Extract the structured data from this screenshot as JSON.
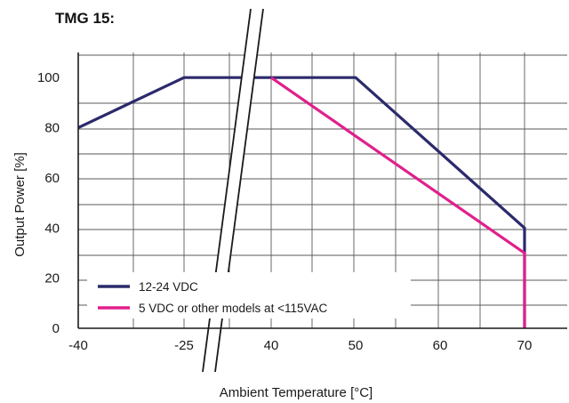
{
  "chart_data": {
    "type": "line",
    "title": "TMG 15:",
    "xlabel": "Ambient Temperature [°C]",
    "ylabel": "Output Power [%]",
    "x_tick_labels": [
      "-40",
      "-25",
      "40",
      "50",
      "60",
      "70"
    ],
    "y_ticks": [
      0,
      20,
      40,
      60,
      80,
      100
    ],
    "ylim": [
      0,
      110
    ],
    "axis_break": "between -25 and 40",
    "grid": true,
    "legend_position": "bottom-left",
    "series": [
      {
        "name": "12-24 VDC",
        "color": "#2b2a6b",
        "points": [
          {
            "x": -40,
            "y": 80
          },
          {
            "x": -25,
            "y": 100
          },
          {
            "x": 40,
            "y": 100
          },
          {
            "x": 50,
            "y": 100
          },
          {
            "x": 70,
            "y": 40
          },
          {
            "x": 70,
            "y": 0
          }
        ]
      },
      {
        "name": "5 VDC or other models at <115VAC",
        "color": "#e0208c",
        "points": [
          {
            "x": 40,
            "y": 100
          },
          {
            "x": 70,
            "y": 30
          },
          {
            "x": 70,
            "y": 0
          }
        ]
      }
    ]
  }
}
